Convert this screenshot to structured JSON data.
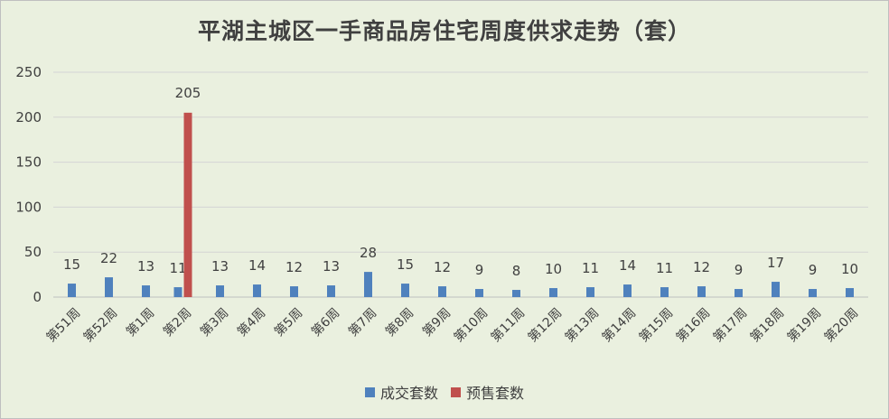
{
  "colors": {
    "background": "#eaf0df",
    "grid": "#d4d4d4",
    "text": "#404040",
    "series_sales": "#4f81bd",
    "series_presale": "#c0504d"
  },
  "chart_data": {
    "type": "bar",
    "title": "平湖主城区一手商品房住宅周度供求走势（套）",
    "xlabel": "",
    "ylabel": "",
    "ylim": [
      0,
      250
    ],
    "yticks": [
      0,
      50,
      100,
      150,
      200,
      250
    ],
    "grid": true,
    "legend_position": "bottom",
    "categories": [
      "第51周",
      "第52周",
      "第1周",
      "第2周",
      "第3周",
      "第4周",
      "第5周",
      "第6周",
      "第7周",
      "第8周",
      "第9周",
      "第10周",
      "第11周",
      "第12周",
      "第13周",
      "第14周",
      "第15周",
      "第16周",
      "第17周",
      "第18周",
      "第19周",
      "第20周"
    ],
    "series": [
      {
        "name": "成交套数",
        "color": "#4f81bd",
        "values": [
          15,
          22,
          13,
          11,
          13,
          14,
          12,
          13,
          28,
          15,
          12,
          9,
          8,
          10,
          11,
          14,
          11,
          12,
          9,
          17,
          9,
          10
        ]
      },
      {
        "name": "预售套数",
        "color": "#c0504d",
        "values": [
          null,
          null,
          null,
          205,
          null,
          null,
          null,
          null,
          null,
          null,
          null,
          null,
          null,
          null,
          null,
          null,
          null,
          null,
          null,
          null,
          null,
          null
        ]
      }
    ]
  }
}
